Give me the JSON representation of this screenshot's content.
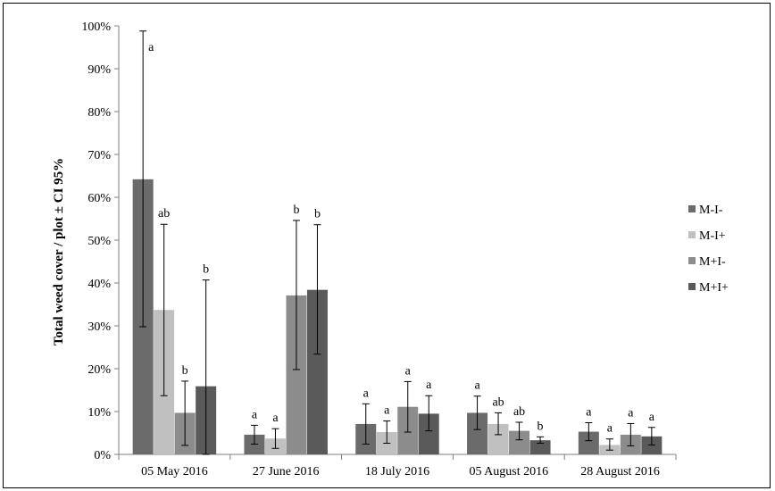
{
  "chart_data": {
    "type": "bar",
    "title": "",
    "xlabel": "",
    "ylabel": "Total weed cover / plot ± CI 95%",
    "ylim": [
      0,
      100
    ],
    "y_ticks": [
      "0%",
      "10%",
      "20%",
      "30%",
      "40%",
      "50%",
      "60%",
      "70%",
      "80%",
      "90%",
      "100%"
    ],
    "categories": [
      "05 May 2016",
      "27 June 2016",
      "18 July 2016",
      "05 August 2016",
      "28 August 2016"
    ],
    "legend_position": "right",
    "grid": false,
    "series": [
      {
        "name": "M-I-",
        "color": "#6b6b6b",
        "values": [
          64.2,
          4.6,
          7.1,
          9.7,
          5.3
        ],
        "ci_low": [
          29.8,
          2.4,
          2.4,
          5.8,
          3.2
        ],
        "ci_high": [
          98.8,
          6.8,
          11.8,
          13.6,
          7.4
        ],
        "letters": [
          "a",
          "a",
          "a",
          "a",
          "a"
        ]
      },
      {
        "name": "M-I+",
        "color": "#c0c0c0",
        "values": [
          33.7,
          3.7,
          5.2,
          7.1,
          2.2
        ],
        "ci_low": [
          13.7,
          1.4,
          2.6,
          4.6,
          1.0
        ],
        "ci_high": [
          53.7,
          6.0,
          7.8,
          9.7,
          3.6
        ],
        "letters": [
          "ab",
          "a",
          "a",
          "ab",
          "a"
        ]
      },
      {
        "name": "M+I-",
        "color": "#8c8c8c",
        "values": [
          9.7,
          37.1,
          11.1,
          5.5,
          4.6
        ],
        "ci_low": [
          2.1,
          19.8,
          5.2,
          3.4,
          2.0
        ],
        "ci_high": [
          17.1,
          54.6,
          17.0,
          7.5,
          7.2
        ],
        "letters": [
          "b",
          "b",
          "a",
          "ab",
          "a"
        ]
      },
      {
        "name": "M+I+",
        "color": "#5a5a5a",
        "values": [
          15.9,
          38.4,
          9.5,
          3.3,
          4.2
        ],
        "ci_low": [
          0.0,
          23.4,
          5.5,
          2.6,
          2.2
        ],
        "ci_high": [
          40.7,
          53.6,
          13.7,
          4.1,
          6.3
        ],
        "letters": [
          "b",
          "b",
          "a",
          "b",
          "a"
        ]
      }
    ]
  }
}
